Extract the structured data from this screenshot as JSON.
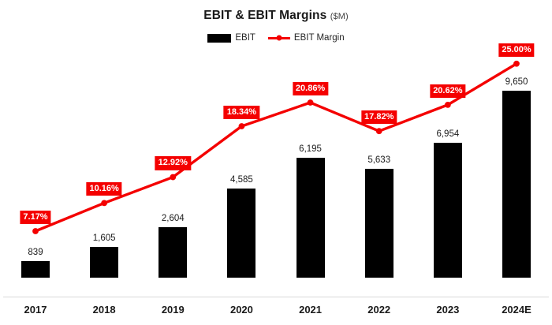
{
  "title": {
    "main": "EBIT & EBIT Margins",
    "unit": "($M)"
  },
  "legend": {
    "ebit": "EBIT",
    "margin": "EBIT Margin"
  },
  "colors": {
    "bar": "#000000",
    "line": "#f40000",
    "label_bg": "#f40000",
    "label_text": "#ffffff",
    "axis_line": "#d9d9d9",
    "text": "#1a1a1a"
  },
  "chart_data": {
    "type": "bar+line",
    "title": "EBIT & EBIT Margins ($M)",
    "categories": [
      "2017",
      "2018",
      "2019",
      "2020",
      "2021",
      "2022",
      "2023",
      "2024E"
    ],
    "series": [
      {
        "name": "EBIT",
        "type": "bar",
        "values": [
          839,
          1605,
          2604,
          4585,
          6195,
          5633,
          6954,
          9650
        ],
        "labels": [
          "839",
          "1,605",
          "2,604",
          "4,585",
          "6,195",
          "5,633",
          "6,954",
          "9,650"
        ]
      },
      {
        "name": "EBIT Margin",
        "type": "line",
        "values": [
          7.17,
          10.16,
          12.92,
          18.34,
          20.86,
          17.82,
          20.62,
          25.0
        ],
        "labels": [
          "7.17%",
          "10.16%",
          "12.92%",
          "18.34%",
          "20.86%",
          "17.82%",
          "20.62%",
          "25.00%"
        ]
      }
    ],
    "value_axis_visible": false,
    "grid": false,
    "legend_position": "top",
    "bar_value_labels": "above bars, black",
    "line_value_labels": "red boxes with white bold text above points"
  }
}
